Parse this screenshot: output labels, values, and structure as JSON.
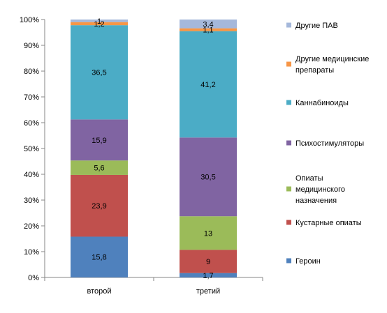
{
  "chart_data": {
    "type": "bar",
    "stacked": true,
    "percent_stacked": true,
    "categories": [
      "второй",
      "третий"
    ],
    "series": [
      {
        "name": "Героин",
        "color": "#4F81BD",
        "values": [
          15.8,
          1.7
        ]
      },
      {
        "name": "Кустарные опиаты",
        "color": "#C0504D",
        "values": [
          23.9,
          9
        ]
      },
      {
        "name": "Опиаты медицинского назначения",
        "color": "#9BBB59",
        "values": [
          5.6,
          13
        ]
      },
      {
        "name": "Психостимуляторы",
        "color": "#8064A2",
        "values": [
          15.9,
          30.5
        ]
      },
      {
        "name": "Каннабиноиды",
        "color": "#4BACC6",
        "values": [
          36.5,
          41.2
        ]
      },
      {
        "name": "Другие медицинские препараты",
        "color": "#F79646",
        "values": [
          1.2,
          1.1
        ]
      },
      {
        "name": "Другие ПАВ",
        "color": "#A5B8DB",
        "values": [
          1,
          3.4
        ]
      }
    ],
    "data_labels": [
      [
        "15,8",
        "23,9",
        "5,6",
        "15,9",
        "36,5",
        "1,2",
        "1"
      ],
      [
        "1,7",
        "9",
        "13",
        "30,5",
        "41,2",
        "1,1",
        "3,4"
      ]
    ],
    "y_ticks": [
      "0%",
      "10%",
      "20%",
      "30%",
      "40%",
      "50%",
      "60%",
      "70%",
      "80%",
      "90%",
      "100%"
    ],
    "ylim": [
      0,
      100
    ],
    "legend_position": "right",
    "legend_lines": [
      [
        "Другие ПАВ"
      ],
      [
        "Другие медицинские",
        "препараты"
      ],
      [
        "Каннабиноиды"
      ],
      [
        "Психостимуляторы"
      ],
      [
        "Опиаты",
        "медицинского",
        "назначения"
      ],
      [
        "Кустарные опиаты"
      ],
      [
        "Героин"
      ]
    ],
    "grid": false,
    "title": "",
    "xlabel": "",
    "ylabel": ""
  }
}
